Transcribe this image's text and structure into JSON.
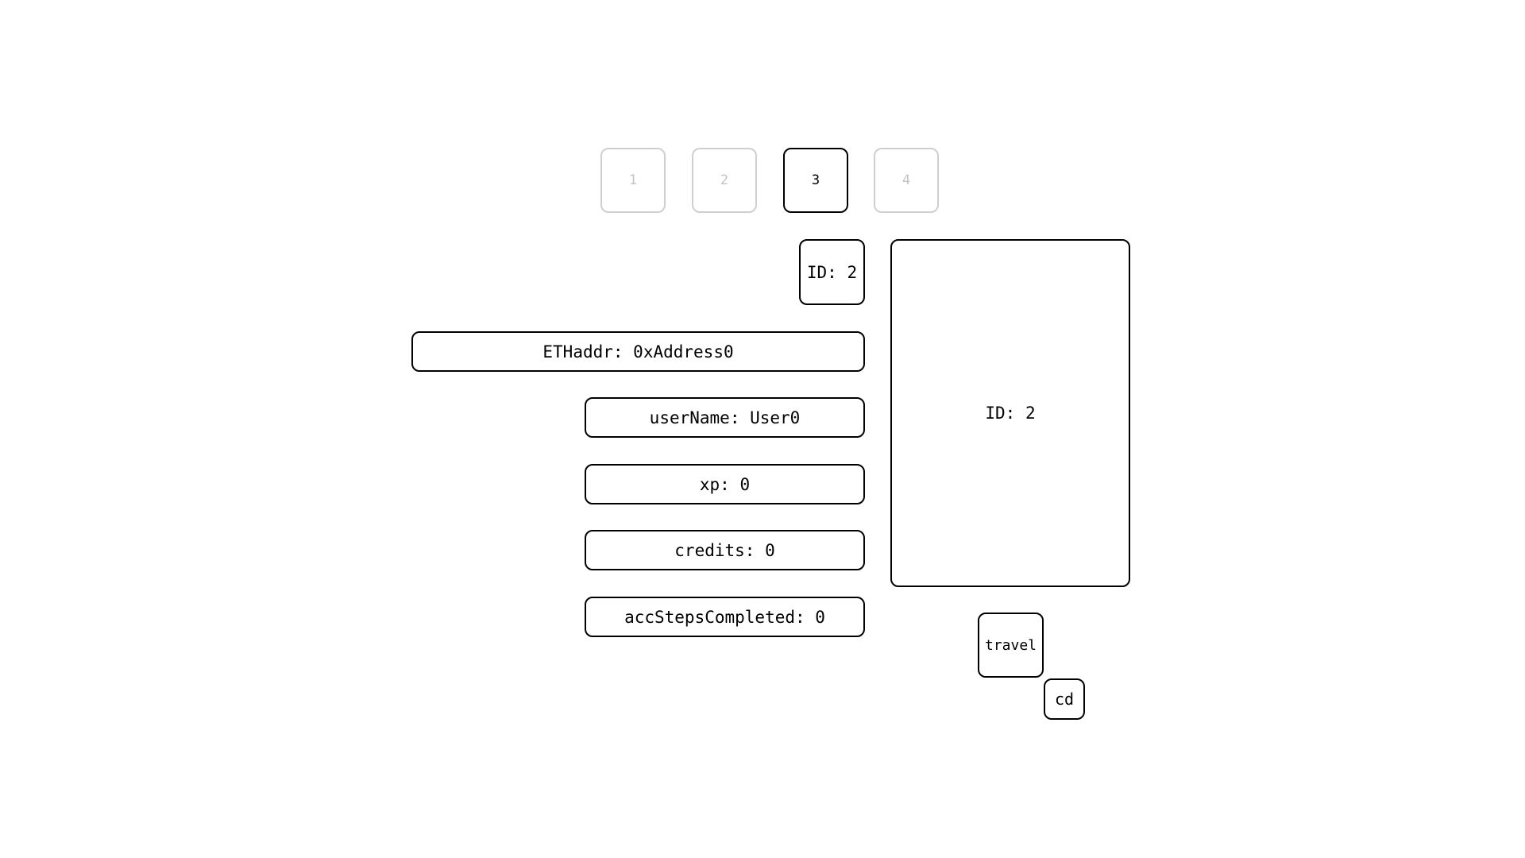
{
  "steps": [
    {
      "label": "1",
      "active": false
    },
    {
      "label": "2",
      "active": false
    },
    {
      "label": "3",
      "active": true
    },
    {
      "label": "4",
      "active": false
    }
  ],
  "id_badge": "ID: 2",
  "fields": {
    "eth_addr": "ETHaddr: 0xAddress0",
    "user_name": "userName: User0",
    "xp": "xp: 0",
    "credits": "credits: 0",
    "acc_steps_completed": "accStepsCompleted: 0"
  },
  "panel": {
    "label": "ID: 2"
  },
  "buttons": {
    "travel": "travel",
    "cd": "cd"
  },
  "colors": {
    "active_border": "#000000",
    "inactive_border": "#cfcfcf",
    "inactive_text": "#c3c3c3"
  }
}
